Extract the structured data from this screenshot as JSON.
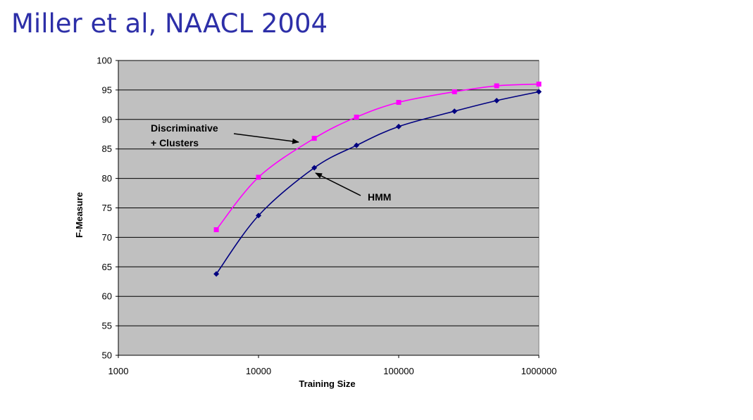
{
  "slide": {
    "title": "Miller et al, NAACL 2004"
  },
  "colors": {
    "plot_background": "#c0c0c0",
    "gridline": "#000000",
    "discriminative": "#ff00ff",
    "hmm": "#000080"
  },
  "chart_data": {
    "type": "line",
    "xscale": "log",
    "xlabel": "Training Size",
    "ylabel": "F-Measure",
    "xlim": [
      1000,
      1000000
    ],
    "ylim": [
      50,
      100
    ],
    "xticks": [
      "1000",
      "10000",
      "100000",
      "1000000"
    ],
    "yticks": [
      "50",
      "55",
      "60",
      "65",
      "70",
      "75",
      "80",
      "85",
      "90",
      "95",
      "100"
    ],
    "grid": "horizontal",
    "series": [
      {
        "key": "discriminative",
        "marker": "square",
        "x": [
          5000,
          10000,
          25000,
          50000,
          100000,
          250000,
          500000,
          1000000
        ],
        "y": [
          71.3,
          80.2,
          86.8,
          90.4,
          92.9,
          94.7,
          95.7,
          96.0
        ]
      },
      {
        "key": "hmm",
        "marker": "diamond",
        "x": [
          5000,
          10000,
          25000,
          50000,
          100000,
          250000,
          500000,
          1000000
        ],
        "y": [
          63.8,
          73.7,
          81.8,
          85.6,
          88.8,
          91.4,
          93.2,
          94.7
        ]
      }
    ],
    "annotations": [
      {
        "lines": [
          "Discriminative",
          "+ Clusters"
        ],
        "series": "discriminative"
      },
      {
        "lines": [
          "HMM"
        ],
        "series": "hmm"
      }
    ]
  }
}
